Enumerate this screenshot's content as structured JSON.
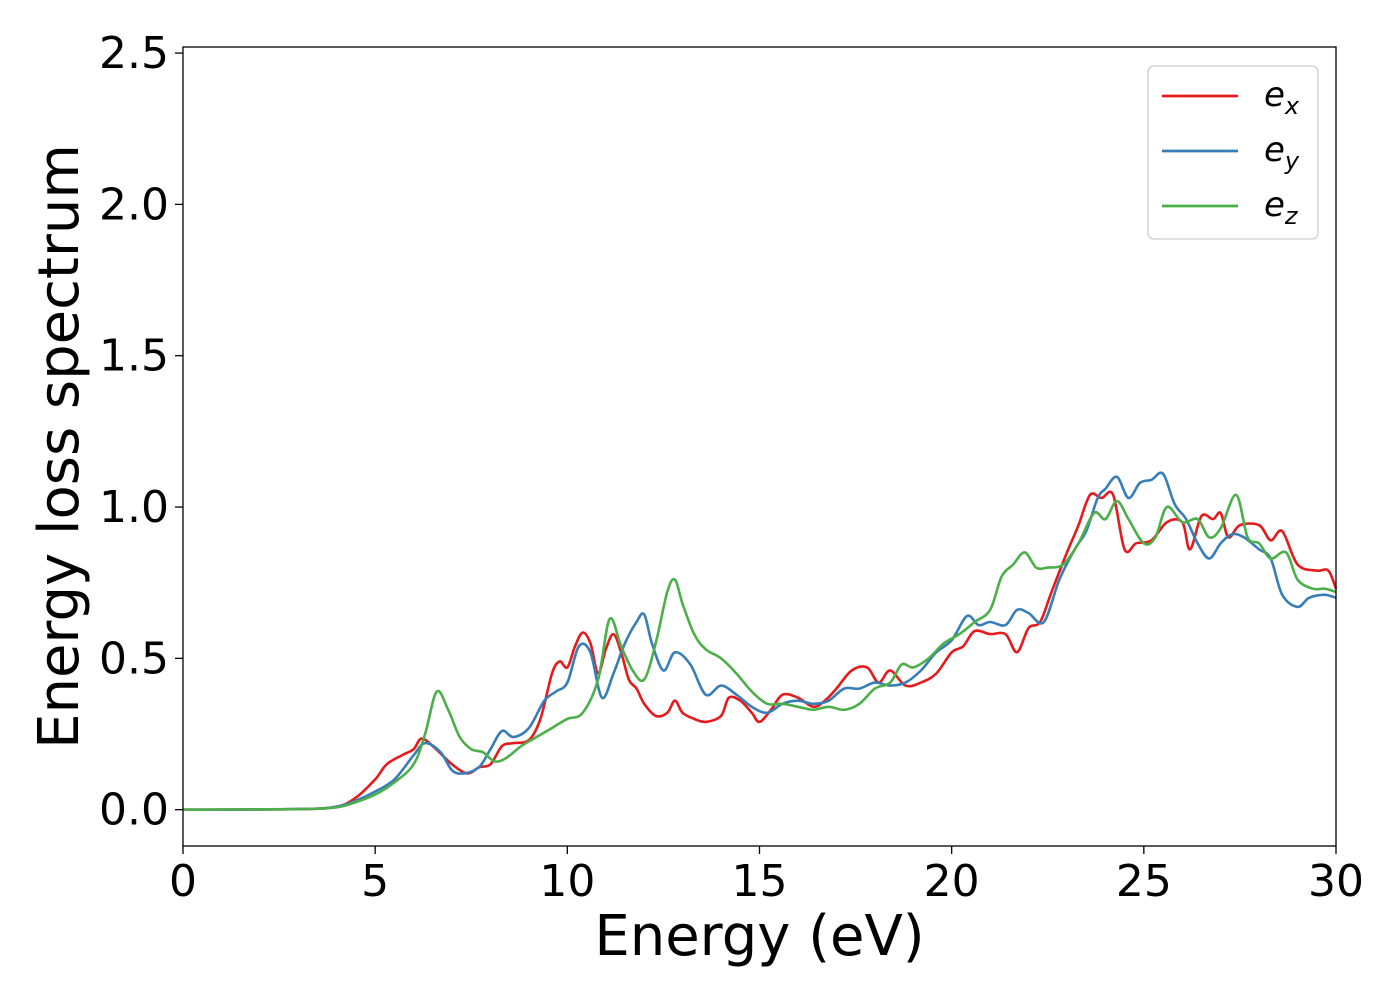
{
  "chart_data": {
    "type": "line",
    "xlabel": "Energy (eV)",
    "ylabel": "Energy loss spectrum",
    "xlim": [
      0,
      30
    ],
    "ylim": [
      -0.12,
      2.52
    ],
    "x_ticks": [
      0,
      5,
      10,
      15,
      20,
      25,
      30
    ],
    "x_tick_labels": [
      "0",
      "5",
      "10",
      "15",
      "20",
      "25",
      "30"
    ],
    "y_ticks": [
      0.0,
      0.5,
      1.0,
      1.5,
      2.0,
      2.5
    ],
    "y_tick_labels": [
      "0.0",
      "0.5",
      "1.0",
      "1.5",
      "2.0",
      "2.5"
    ],
    "grid": false,
    "legend_position": "top-right",
    "series": [
      {
        "name": "e_x",
        "legend_base": "e",
        "legend_sub": "x",
        "color": "#e41a1c",
        "points": [
          [
            0,
            0
          ],
          [
            3,
            0.002
          ],
          [
            4,
            0.01
          ],
          [
            4.5,
            0.04
          ],
          [
            5,
            0.1
          ],
          [
            5.3,
            0.15
          ],
          [
            5.7,
            0.18
          ],
          [
            6,
            0.2
          ],
          [
            6.2,
            0.235
          ],
          [
            6.5,
            0.21
          ],
          [
            7,
            0.15
          ],
          [
            7.4,
            0.12
          ],
          [
            7.7,
            0.14
          ],
          [
            8,
            0.15
          ],
          [
            8.3,
            0.21
          ],
          [
            8.6,
            0.22
          ],
          [
            9,
            0.23
          ],
          [
            9.3,
            0.3
          ],
          [
            9.6,
            0.45
          ],
          [
            9.8,
            0.49
          ],
          [
            10,
            0.47
          ],
          [
            10.2,
            0.54
          ],
          [
            10.4,
            0.585
          ],
          [
            10.6,
            0.55
          ],
          [
            10.8,
            0.45
          ],
          [
            11,
            0.53
          ],
          [
            11.2,
            0.58
          ],
          [
            11.4,
            0.52
          ],
          [
            11.6,
            0.43
          ],
          [
            11.8,
            0.4
          ],
          [
            12,
            0.35
          ],
          [
            12.3,
            0.31
          ],
          [
            12.6,
            0.32
          ],
          [
            12.8,
            0.36
          ],
          [
            13,
            0.32
          ],
          [
            13.3,
            0.3
          ],
          [
            13.6,
            0.29
          ],
          [
            14,
            0.31
          ],
          [
            14.2,
            0.37
          ],
          [
            14.5,
            0.36
          ],
          [
            14.8,
            0.32
          ],
          [
            15,
            0.29
          ],
          [
            15.3,
            0.33
          ],
          [
            15.6,
            0.38
          ],
          [
            16,
            0.37
          ],
          [
            16.4,
            0.34
          ],
          [
            16.7,
            0.36
          ],
          [
            17,
            0.4
          ],
          [
            17.4,
            0.46
          ],
          [
            17.8,
            0.47
          ],
          [
            18.1,
            0.42
          ],
          [
            18.4,
            0.46
          ],
          [
            18.8,
            0.41
          ],
          [
            19.2,
            0.42
          ],
          [
            19.6,
            0.45
          ],
          [
            20,
            0.52
          ],
          [
            20.3,
            0.54
          ],
          [
            20.6,
            0.59
          ],
          [
            21,
            0.58
          ],
          [
            21.4,
            0.58
          ],
          [
            21.7,
            0.52
          ],
          [
            22,
            0.6
          ],
          [
            22.3,
            0.62
          ],
          [
            22.6,
            0.72
          ],
          [
            23,
            0.85
          ],
          [
            23.3,
            0.94
          ],
          [
            23.6,
            1.04
          ],
          [
            23.9,
            1.03
          ],
          [
            24.2,
            1.04
          ],
          [
            24.5,
            0.86
          ],
          [
            24.8,
            0.88
          ],
          [
            25.2,
            0.89
          ],
          [
            25.6,
            0.95
          ],
          [
            26,
            0.95
          ],
          [
            26.2,
            0.86
          ],
          [
            26.5,
            0.97
          ],
          [
            26.8,
            0.96
          ],
          [
            27,
            0.98
          ],
          [
            27.2,
            0.9
          ],
          [
            27.5,
            0.94
          ],
          [
            28,
            0.94
          ],
          [
            28.3,
            0.89
          ],
          [
            28.6,
            0.92
          ],
          [
            29,
            0.81
          ],
          [
            29.5,
            0.79
          ],
          [
            29.8,
            0.79
          ],
          [
            30,
            0.73
          ]
        ]
      },
      {
        "name": "e_y",
        "legend_base": "e",
        "legend_sub": "y",
        "color": "#377eb8",
        "points": [
          [
            0,
            0
          ],
          [
            3,
            0.002
          ],
          [
            4,
            0.01
          ],
          [
            4.5,
            0.03
          ],
          [
            5,
            0.06
          ],
          [
            5.5,
            0.1
          ],
          [
            6,
            0.18
          ],
          [
            6.3,
            0.22
          ],
          [
            6.7,
            0.19
          ],
          [
            7,
            0.13
          ],
          [
            7.3,
            0.12
          ],
          [
            7.7,
            0.14
          ],
          [
            8,
            0.2
          ],
          [
            8.3,
            0.26
          ],
          [
            8.6,
            0.24
          ],
          [
            9,
            0.27
          ],
          [
            9.4,
            0.36
          ],
          [
            9.7,
            0.39
          ],
          [
            10,
            0.42
          ],
          [
            10.3,
            0.54
          ],
          [
            10.6,
            0.52
          ],
          [
            10.9,
            0.37
          ],
          [
            11.2,
            0.45
          ],
          [
            11.5,
            0.55
          ],
          [
            11.8,
            0.62
          ],
          [
            12,
            0.645
          ],
          [
            12.2,
            0.55
          ],
          [
            12.5,
            0.46
          ],
          [
            12.8,
            0.52
          ],
          [
            13.2,
            0.48
          ],
          [
            13.6,
            0.38
          ],
          [
            14,
            0.41
          ],
          [
            14.4,
            0.38
          ],
          [
            14.8,
            0.34
          ],
          [
            15.2,
            0.32
          ],
          [
            15.6,
            0.35
          ],
          [
            16,
            0.36
          ],
          [
            16.4,
            0.35
          ],
          [
            16.8,
            0.36
          ],
          [
            17.2,
            0.4
          ],
          [
            17.6,
            0.4
          ],
          [
            18,
            0.42
          ],
          [
            18.4,
            0.41
          ],
          [
            18.8,
            0.42
          ],
          [
            19.2,
            0.46
          ],
          [
            19.6,
            0.52
          ],
          [
            20,
            0.56
          ],
          [
            20.4,
            0.64
          ],
          [
            20.7,
            0.61
          ],
          [
            21,
            0.62
          ],
          [
            21.4,
            0.61
          ],
          [
            21.7,
            0.66
          ],
          [
            22,
            0.65
          ],
          [
            22.4,
            0.62
          ],
          [
            22.8,
            0.76
          ],
          [
            23.2,
            0.86
          ],
          [
            23.5,
            0.92
          ],
          [
            23.8,
            1.03
          ],
          [
            24,
            1.06
          ],
          [
            24.3,
            1.1
          ],
          [
            24.6,
            1.03
          ],
          [
            24.9,
            1.08
          ],
          [
            25.2,
            1.09
          ],
          [
            25.5,
            1.11
          ],
          [
            25.8,
            1.01
          ],
          [
            26.1,
            0.96
          ],
          [
            26.4,
            0.88
          ],
          [
            26.7,
            0.83
          ],
          [
            27,
            0.88
          ],
          [
            27.3,
            0.91
          ],
          [
            27.6,
            0.9
          ],
          [
            28,
            0.86
          ],
          [
            28.3,
            0.83
          ],
          [
            28.6,
            0.71
          ],
          [
            29,
            0.67
          ],
          [
            29.3,
            0.7
          ],
          [
            29.7,
            0.71
          ],
          [
            30,
            0.7
          ]
        ]
      },
      {
        "name": "e_z",
        "legend_base": "e",
        "legend_sub": "z",
        "color": "#4daf4a",
        "points": [
          [
            0,
            0
          ],
          [
            3,
            0.002
          ],
          [
            4,
            0.008
          ],
          [
            4.5,
            0.025
          ],
          [
            5,
            0.05
          ],
          [
            5.5,
            0.09
          ],
          [
            6,
            0.15
          ],
          [
            6.3,
            0.25
          ],
          [
            6.6,
            0.39
          ],
          [
            6.9,
            0.33
          ],
          [
            7.2,
            0.24
          ],
          [
            7.5,
            0.2
          ],
          [
            7.8,
            0.19
          ],
          [
            8.1,
            0.16
          ],
          [
            8.4,
            0.17
          ],
          [
            8.8,
            0.21
          ],
          [
            9.2,
            0.24
          ],
          [
            9.6,
            0.27
          ],
          [
            10,
            0.3
          ],
          [
            10.4,
            0.32
          ],
          [
            10.8,
            0.43
          ],
          [
            11.1,
            0.63
          ],
          [
            11.4,
            0.54
          ],
          [
            11.7,
            0.46
          ],
          [
            12,
            0.43
          ],
          [
            12.3,
            0.55
          ],
          [
            12.6,
            0.72
          ],
          [
            12.8,
            0.76
          ],
          [
            13,
            0.68
          ],
          [
            13.3,
            0.58
          ],
          [
            13.6,
            0.53
          ],
          [
            14,
            0.5
          ],
          [
            14.4,
            0.45
          ],
          [
            14.8,
            0.39
          ],
          [
            15.2,
            0.35
          ],
          [
            15.6,
            0.35
          ],
          [
            16,
            0.34
          ],
          [
            16.4,
            0.33
          ],
          [
            16.8,
            0.34
          ],
          [
            17.2,
            0.33
          ],
          [
            17.6,
            0.35
          ],
          [
            18,
            0.4
          ],
          [
            18.4,
            0.42
          ],
          [
            18.7,
            0.48
          ],
          [
            19,
            0.47
          ],
          [
            19.4,
            0.5
          ],
          [
            19.8,
            0.55
          ],
          [
            20.2,
            0.58
          ],
          [
            20.6,
            0.62
          ],
          [
            21,
            0.66
          ],
          [
            21.3,
            0.77
          ],
          [
            21.6,
            0.81
          ],
          [
            21.9,
            0.85
          ],
          [
            22.2,
            0.8
          ],
          [
            22.5,
            0.8
          ],
          [
            22.9,
            0.81
          ],
          [
            23.3,
            0.88
          ],
          [
            23.7,
            0.98
          ],
          [
            24,
            0.96
          ],
          [
            24.3,
            1.02
          ],
          [
            24.6,
            0.96
          ],
          [
            25,
            0.88
          ],
          [
            25.3,
            0.9
          ],
          [
            25.6,
            1.0
          ],
          [
            26,
            0.95
          ],
          [
            26.4,
            0.96
          ],
          [
            26.7,
            0.9
          ],
          [
            27,
            0.93
          ],
          [
            27.4,
            1.04
          ],
          [
            27.7,
            0.9
          ],
          [
            28,
            0.88
          ],
          [
            28.3,
            0.83
          ],
          [
            28.7,
            0.85
          ],
          [
            29,
            0.76
          ],
          [
            29.4,
            0.73
          ],
          [
            29.7,
            0.73
          ],
          [
            30,
            0.72
          ]
        ]
      }
    ]
  }
}
